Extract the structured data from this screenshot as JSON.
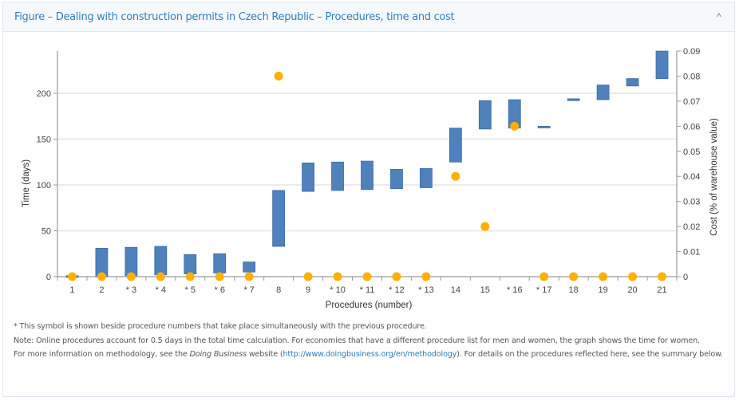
{
  "panel": {
    "title": "Figure – Dealing with construction permits in Czech Republic – Procedures, time and cost",
    "collapse_icon": "chevron-up-icon",
    "collapse_glyph": "^"
  },
  "notes": {
    "symbol_note": "* This symbol is shown beside procedure numbers that take place simultaneously with the previous procedure.",
    "note_line": "Note: Online procedures account for 0.5 days in the total time calculation. For economies that have a different procedure list for men and women, the graph shows the time for women.",
    "methodology_prefix": " For more information on methodology, see the ",
    "methodology_italic": "Doing Business",
    "methodology_mid": " website (",
    "methodology_link": "http://www.doingbusiness.org/en/methodology",
    "methodology_suffix": "). For details on the procedures reflected here, see the summary below."
  },
  "colors": {
    "bar": "#4f81bd",
    "bar_border": "#3c6ca4",
    "dot": "#ffb000",
    "grid": "#ebebeb",
    "axis": "#999999",
    "title": "#2f7fb5"
  },
  "chart_data": {
    "type": "bar",
    "subtype": "floating-bar-with-scatter",
    "title": "",
    "xlabel": "Procedures (number)",
    "ylabel": "Time (days)",
    "y2label": "Cost (% of warehouse value)",
    "categories": [
      "1",
      "2",
      "* 3",
      "* 4",
      "* 5",
      "* 6",
      "* 7",
      "8",
      "9",
      "* 10",
      "* 11",
      "* 12",
      "* 13",
      "14",
      "15",
      "* 16",
      "* 17",
      "18",
      "19",
      "20",
      "21"
    ],
    "ylim": [
      0,
      245
    ],
    "yticks": [
      0,
      50,
      100,
      150,
      200
    ],
    "y2lim": [
      0,
      0.09
    ],
    "y2ticks": [
      "0",
      "0.01",
      "0.02",
      "0.03",
      "0.04",
      "0.05",
      "0.06",
      "0.07",
      "0.08",
      "0.09"
    ],
    "grid": true,
    "legend": "none",
    "series": [
      {
        "name": "Time (days)",
        "kind": "floating-bar",
        "axis": "left",
        "start": [
          0,
          0,
          1,
          2,
          3,
          4,
          5,
          33,
          93,
          94,
          95,
          96,
          97,
          125,
          161,
          162,
          163,
          192,
          193,
          208,
          216
        ],
        "end": [
          1,
          31,
          32,
          33,
          24,
          25,
          16,
          94,
          124,
          125,
          126,
          117,
          118,
          162,
          192,
          193,
          164,
          194,
          209,
          216,
          246
        ]
      },
      {
        "name": "Cost (% of warehouse value)",
        "kind": "scatter",
        "axis": "right",
        "values": [
          0,
          0,
          0,
          0,
          0,
          0,
          0,
          0.08,
          0,
          0,
          0,
          0,
          0,
          0.04,
          0.02,
          0.06,
          0,
          0,
          0,
          0,
          0
        ]
      }
    ]
  }
}
